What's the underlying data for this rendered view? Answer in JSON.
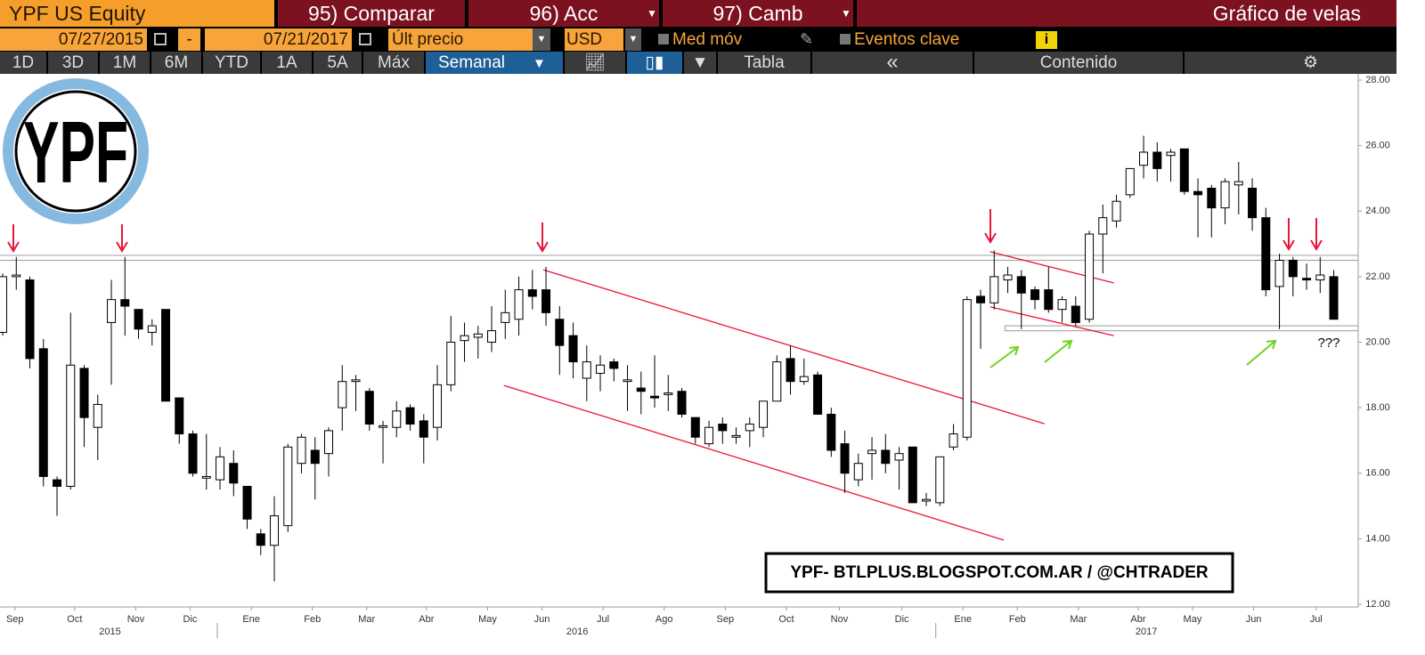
{
  "toolbar": {
    "security": "YPF US Equity",
    "compare": "95) Comparar",
    "actions": "96) Acc",
    "change": "97) Camb",
    "view": "Gráfico de velas",
    "start_date": "07/27/2015",
    "dash": "-",
    "end_date": "07/21/2017",
    "price_field": "Últ precio",
    "currency": "USD",
    "moving_avg": "Med móv",
    "key_events": "Eventos clave",
    "info": "i",
    "periods": [
      "1D",
      "3D",
      "1M",
      "6M",
      "YTD",
      "1A",
      "5A",
      "Máx"
    ],
    "frequency": "Semanal",
    "table": "Tabla",
    "collapse": "«",
    "content": "Contenido"
  },
  "logo": {
    "text": "YPF"
  },
  "watermark": "YPF- BTLPLUS.BLOGSPOT.COM.AR / @CHTRADER",
  "chart_data": {
    "type": "candlestick",
    "up_color": "#ffffff",
    "down_color": "#000000",
    "line_color": "#000000",
    "open": [
      20.3,
      22,
      21.9,
      19.8,
      15.8,
      15.6,
      19.2,
      17.4,
      20.6,
      21.3,
      21,
      20.3,
      21,
      18.3,
      17.2,
      15.85,
      15.8,
      16.3,
      15.6,
      14.15,
      13.8,
      14.4,
      16.3,
      16.7,
      16.6,
      18,
      18.8,
      18.5,
      17.4,
      17.4,
      18,
      17.6,
      17.4,
      18.7,
      20.05,
      20.15,
      20,
      20.6,
      20.7,
      21.6,
      21.6,
      20.7,
      20.2,
      18.9,
      19.05,
      19.4,
      18.8,
      18.6,
      18.35,
      18.4,
      18.5,
      17.7,
      16.9,
      17.5,
      17.1,
      17.3,
      17.4,
      18.2,
      19.5,
      18.8,
      19,
      17.8,
      16.9,
      15.8,
      16.6,
      16.7,
      16.4,
      16.8,
      15.15,
      15.1,
      16.8,
      17.1,
      21.4,
      21.2,
      21.9,
      22,
      21.6,
      21.6,
      21,
      21.1,
      20.7,
      23.3,
      23.7,
      24.5,
      25.4,
      25.8,
      25.7,
      25.9,
      24.6,
      24.7,
      24.1,
      24.8,
      24.7,
      23.8,
      21.7,
      22.5,
      21.95,
      21.9,
      22
    ],
    "high": [
      22.1,
      22.6,
      22,
      20.1,
      15.9,
      20.9,
      19.3,
      18.4,
      21.9,
      22.6,
      21,
      20.7,
      21,
      18.3,
      17.3,
      17.2,
      16.8,
      16.7,
      15.6,
      14.3,
      15.3,
      16.9,
      17.2,
      17.1,
      17.4,
      19.3,
      19,
      18.6,
      17.6,
      18.2,
      18.1,
      17.8,
      19.3,
      20.8,
      20.6,
      20.5,
      21.1,
      21.6,
      22,
      22.2,
      22.3,
      21.1,
      20.6,
      19.9,
      19.6,
      19.5,
      19.3,
      19.1,
      19.6,
      19,
      18.6,
      17.7,
      17.6,
      17.7,
      17.4,
      17.7,
      18.2,
      19.6,
      19.9,
      19.5,
      19.1,
      18,
      17.3,
      16.6,
      17.1,
      17.2,
      16.8,
      16.8,
      15.4,
      16.5,
      17.5,
      21.4,
      21.6,
      22.8,
      22.3,
      22.2,
      21.7,
      22.3,
      21.4,
      21.4,
      23.4,
      24.2,
      24.5,
      25.3,
      26.3,
      26.1,
      25.9,
      25.9,
      25,
      24.8,
      25,
      25.5,
      25,
      24.1,
      22.7,
      22.6,
      22.4,
      22.6,
      22.2
    ],
    "low": [
      20.2,
      21.6,
      19.2,
      15.6,
      14.7,
      15.5,
      16.8,
      16.4,
      18.7,
      20.2,
      20.1,
      19.9,
      18.2,
      16.9,
      15.9,
      15.5,
      15.5,
      15.3,
      14.3,
      13.5,
      12.7,
      14.2,
      16,
      15.2,
      15.9,
      17.3,
      17.9,
      17.3,
      16.3,
      17.1,
      17.3,
      16.3,
      17,
      18.5,
      19.4,
      19.5,
      19.7,
      20.1,
      20.2,
      21,
      20.5,
      19,
      18.9,
      18.2,
      18.5,
      18.8,
      17.9,
      17.8,
      18,
      17.9,
      17.7,
      16.9,
      16.8,
      16.9,
      16.9,
      16.8,
      17.1,
      18.2,
      18.4,
      18.7,
      17.8,
      16.5,
      15.4,
      15.6,
      15.8,
      16,
      15.5,
      15.1,
      15,
      15,
      16.7,
      17,
      19.8,
      21,
      21.5,
      20.4,
      21,
      20.9,
      20.6,
      20.5,
      20.6,
      22.1,
      23.5,
      24.4,
      25,
      24.9,
      24.9,
      24.5,
      23.2,
      23.2,
      23.6,
      23.9,
      23.4,
      21.4,
      20.4,
      21.4,
      21.6,
      21.5,
      20.7
    ],
    "close": [
      22,
      22.05,
      19.5,
      15.9,
      15.6,
      19.3,
      17.7,
      18.1,
      21.3,
      21.1,
      20.4,
      20.5,
      18.2,
      17.2,
      16,
      15.9,
      16.5,
      15.7,
      14.6,
      13.8,
      14.7,
      16.8,
      17.1,
      16.3,
      17.3,
      18.8,
      18.85,
      17.5,
      17.45,
      17.9,
      17.5,
      17.1,
      18.7,
      20,
      20.2,
      20.25,
      20.35,
      20.9,
      21.6,
      21.4,
      20.9,
      19.9,
      19.4,
      19.4,
      19.3,
      19.2,
      18.85,
      18.5,
      18.3,
      18.45,
      17.8,
      17.1,
      17.4,
      17.3,
      17.15,
      17.5,
      18.2,
      19.4,
      18.8,
      18.95,
      17.8,
      16.7,
      16,
      16.3,
      16.7,
      16.3,
      16.6,
      15.1,
      15.2,
      16.5,
      17.2,
      21.3,
      21.2,
      22,
      22.05,
      21.5,
      21.3,
      21,
      21.3,
      20.6,
      23.3,
      23.8,
      24.3,
      25.3,
      25.8,
      25.3,
      25.8,
      24.6,
      24.5,
      24.1,
      24.9,
      24.9,
      23.8,
      21.6,
      22.5,
      22,
      21.9,
      22.05,
      20.7
    ],
    "xlim": [
      -0.1,
      99.8
    ],
    "xticks": [
      {
        "value": 0.9,
        "label": "Sep"
      },
      {
        "value": 5.3,
        "label": "Oct"
      },
      {
        "value": 9.8,
        "label": "Nov"
      },
      {
        "value": 13.8,
        "label": "Dic"
      },
      {
        "value": 18.3,
        "label": "Ene"
      },
      {
        "value": 22.8,
        "label": "Feb"
      },
      {
        "value": 26.8,
        "label": "Mar"
      },
      {
        "value": 31.2,
        "label": "Abr"
      },
      {
        "value": 35.7,
        "label": "May"
      },
      {
        "value": 39.7,
        "label": "Jun"
      },
      {
        "value": 44.2,
        "label": "Jul"
      },
      {
        "value": 48.7,
        "label": "Ago"
      },
      {
        "value": 53.2,
        "label": "Sep"
      },
      {
        "value": 57.7,
        "label": "Oct"
      },
      {
        "value": 61.6,
        "label": "Nov"
      },
      {
        "value": 66.2,
        "label": "Dic"
      },
      {
        "value": 70.7,
        "label": "Ene"
      },
      {
        "value": 74.7,
        "label": "Feb"
      },
      {
        "value": 79.2,
        "label": "Mar"
      },
      {
        "value": 83.6,
        "label": "Abr"
      },
      {
        "value": 87.6,
        "label": "May"
      },
      {
        "value": 92.1,
        "label": "Jun"
      },
      {
        "value": 96.7,
        "label": "Jul"
      }
    ],
    "years": [
      {
        "value": 7.9,
        "label": "2015"
      },
      {
        "value": 42.3,
        "label": "2016"
      },
      {
        "value": 84.2,
        "label": "2017"
      }
    ],
    "year_breaks": [
      15.8,
      68.7
    ],
    "ylim": [
      12,
      28
    ],
    "yticks": [
      {
        "value": 12,
        "label": "12.00"
      },
      {
        "value": 14,
        "label": "14.00"
      },
      {
        "value": 16,
        "label": "16.00"
      },
      {
        "value": 18,
        "label": "18.00"
      },
      {
        "value": 20,
        "label": "20.00"
      },
      {
        "value": 22,
        "label": "22.00"
      },
      {
        "value": 24,
        "label": "24.00"
      },
      {
        "value": 26,
        "label": "26.00"
      },
      {
        "value": 28,
        "label": "28.00"
      }
    ],
    "hlines": [
      22.5,
      22.65
    ],
    "band": {
      "from": 73.8,
      "low": 20.35,
      "high": 20.5
    },
    "trendlines": [
      {
        "x": [
          39.8,
          76.7
        ],
        "y": [
          22.21,
          17.51
        ]
      },
      {
        "x": [
          36.9,
          73.7
        ],
        "y": [
          18.68,
          13.96
        ]
      },
      {
        "x": [
          72.7,
          81.8
        ],
        "y": [
          22.76,
          21.81
        ]
      },
      {
        "x": [
          72.7,
          81.8
        ],
        "y": [
          21.08,
          20.2
        ]
      }
    ],
    "annotation": "???"
  }
}
